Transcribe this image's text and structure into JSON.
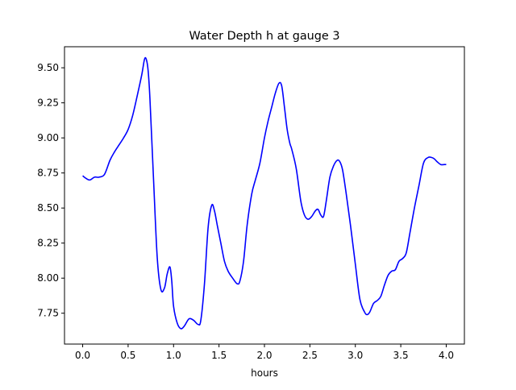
{
  "chart_data": {
    "type": "line",
    "title": "Water Depth h at gauge 3",
    "xlabel": "hours",
    "ylabel": "",
    "xlim": [
      -0.2,
      4.2
    ],
    "ylim": [
      7.53,
      9.65
    ],
    "xticks": [
      0.0,
      0.5,
      1.0,
      1.5,
      2.0,
      2.5,
      3.0,
      3.5,
      4.0
    ],
    "xtick_labels": [
      "0.0",
      "0.5",
      "1.0",
      "1.5",
      "2.0",
      "2.5",
      "3.0",
      "3.5",
      "4.0"
    ],
    "yticks": [
      7.75,
      8.0,
      8.25,
      8.5,
      8.75,
      9.0,
      9.25,
      9.5
    ],
    "ytick_labels": [
      "7.75",
      "8.00",
      "8.25",
      "8.50",
      "8.75",
      "9.00",
      "9.25",
      "9.50"
    ],
    "grid": false,
    "series": [
      {
        "color": "#0000ff",
        "x": [
          0.0,
          0.04,
          0.08,
          0.13,
          0.18,
          0.24,
          0.3,
          0.35,
          0.4,
          0.45,
          0.5,
          0.55,
          0.6,
          0.65,
          0.68,
          0.7,
          0.72,
          0.74,
          0.78,
          0.82,
          0.86,
          0.9,
          0.93,
          0.96,
          0.98,
          1.0,
          1.04,
          1.08,
          1.12,
          1.17,
          1.22,
          1.27,
          1.3,
          1.34,
          1.38,
          1.42,
          1.45,
          1.48,
          1.52,
          1.56,
          1.6,
          1.65,
          1.7,
          1.73,
          1.77,
          1.81,
          1.86,
          1.9,
          1.95,
          2.0,
          2.04,
          2.08,
          2.12,
          2.16,
          2.19,
          2.22,
          2.25,
          2.28,
          2.3,
          2.35,
          2.4,
          2.44,
          2.48,
          2.52,
          2.56,
          2.59,
          2.62,
          2.65,
          2.68,
          2.72,
          2.76,
          2.8,
          2.83,
          2.86,
          2.9,
          2.95,
          3.0,
          3.05,
          3.1,
          3.13,
          3.16,
          3.2,
          3.24,
          3.28,
          3.32,
          3.36,
          3.4,
          3.44,
          3.48,
          3.52,
          3.56,
          3.6,
          3.65,
          3.7,
          3.75,
          3.8,
          3.84,
          3.87,
          3.9,
          3.94,
          3.98,
          4.0
        ],
        "y": [
          8.73,
          8.71,
          8.7,
          8.72,
          8.72,
          8.74,
          8.84,
          8.9,
          8.95,
          9.0,
          9.06,
          9.16,
          9.3,
          9.45,
          9.56,
          9.56,
          9.48,
          9.28,
          8.7,
          8.15,
          7.92,
          7.93,
          8.03,
          8.08,
          7.98,
          7.8,
          7.68,
          7.64,
          7.66,
          7.71,
          7.7,
          7.67,
          7.7,
          7.96,
          8.36,
          8.52,
          8.48,
          8.38,
          8.25,
          8.12,
          8.05,
          8.0,
          7.96,
          7.98,
          8.12,
          8.38,
          8.6,
          8.7,
          8.82,
          9.0,
          9.12,
          9.22,
          9.32,
          9.39,
          9.37,
          9.22,
          9.06,
          8.96,
          8.92,
          8.78,
          8.55,
          8.45,
          8.42,
          8.44,
          8.48,
          8.49,
          8.45,
          8.44,
          8.55,
          8.72,
          8.8,
          8.84,
          8.83,
          8.77,
          8.6,
          8.36,
          8.1,
          7.85,
          7.76,
          7.74,
          7.76,
          7.82,
          7.84,
          7.87,
          7.95,
          8.02,
          8.05,
          8.06,
          8.12,
          8.14,
          8.18,
          8.32,
          8.5,
          8.66,
          8.82,
          8.86,
          8.86,
          8.85,
          8.83,
          8.81,
          8.81,
          8.81
        ]
      }
    ]
  }
}
